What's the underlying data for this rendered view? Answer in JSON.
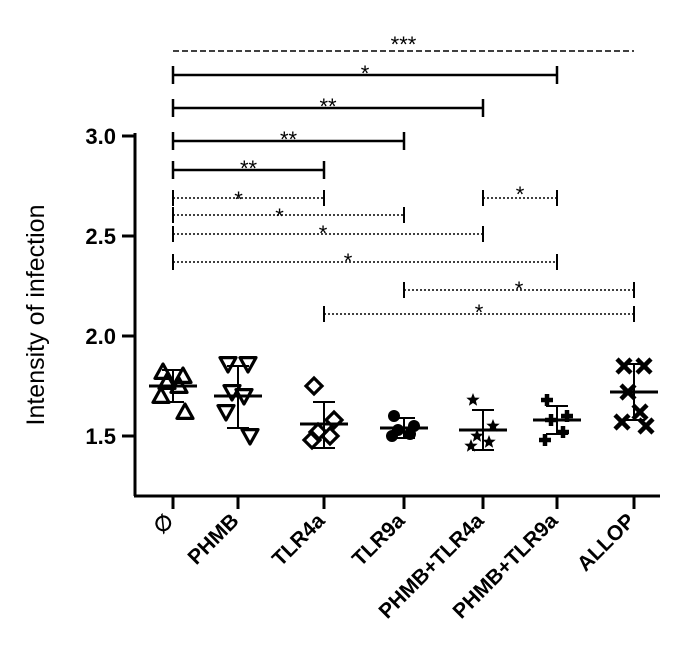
{
  "chart_data": {
    "type": "scatter",
    "ylabel": "Intensity of infection",
    "ylim": [
      1.2,
      3.0
    ],
    "yticks": [
      1.5,
      2.0,
      2.5,
      3.0
    ],
    "ytick_labels": [
      "1.5",
      "2.0",
      "2.5",
      "3.0"
    ],
    "categories": [
      "∅",
      "PHMB",
      "TLR4a",
      "TLR9a",
      "PHMB+TLR4a",
      "PHMB+TLR9a",
      "ALLOP"
    ],
    "groups": [
      {
        "name": "∅",
        "marker": "triangle-up",
        "points": [
          1.82,
          1.8,
          1.77,
          1.75,
          1.7,
          1.62
        ],
        "mean": 1.75,
        "sd": [
          1.67,
          1.83
        ]
      },
      {
        "name": "PHMB",
        "marker": "triangle-down",
        "points": [
          1.86,
          1.86,
          1.72,
          1.7,
          1.62,
          1.5
        ],
        "mean": 1.7,
        "sd": [
          1.54,
          1.85
        ]
      },
      {
        "name": "TLR4a",
        "marker": "diamond",
        "points": [
          1.75,
          1.58,
          1.52,
          1.5,
          1.48
        ],
        "mean": 1.56,
        "sd": [
          1.44,
          1.67
        ]
      },
      {
        "name": "TLR9a",
        "marker": "circle",
        "points": [
          1.6,
          1.55,
          1.53,
          1.51,
          1.5
        ],
        "mean": 1.54,
        "sd": [
          1.49,
          1.59
        ]
      },
      {
        "name": "PHMB+TLR4a",
        "marker": "star",
        "points": [
          1.68,
          1.55,
          1.5,
          1.47,
          1.45
        ],
        "mean": 1.53,
        "sd": [
          1.43,
          1.63
        ]
      },
      {
        "name": "PHMB+TLR9a",
        "marker": "plus",
        "points": [
          1.68,
          1.6,
          1.58,
          1.52,
          1.48
        ],
        "mean": 1.58,
        "sd": [
          1.51,
          1.65
        ]
      },
      {
        "name": "ALLOP",
        "marker": "x",
        "points": [
          1.85,
          1.85,
          1.72,
          1.62,
          1.57,
          1.55
        ],
        "mean": 1.72,
        "sd": [
          1.58,
          1.86
        ]
      }
    ],
    "comparisons": [
      {
        "from": 0,
        "to": 6,
        "label": "***",
        "style": "dashed"
      },
      {
        "from": 0,
        "to": 5,
        "label": "*",
        "style": "solid"
      },
      {
        "from": 0,
        "to": 4,
        "label": "**",
        "style": "solid"
      },
      {
        "from": 0,
        "to": 3,
        "label": "**",
        "style": "solid"
      },
      {
        "from": 0,
        "to": 2,
        "label": "**",
        "style": "solid"
      },
      {
        "from": 0,
        "to": 2,
        "label": "*",
        "style": "dotted"
      },
      {
        "from": 4,
        "to": 5,
        "label": "*",
        "style": "dotted"
      },
      {
        "from": 0,
        "to": 3,
        "label": "*",
        "style": "dotted"
      },
      {
        "from": 0,
        "to": 4,
        "label": "*",
        "style": "dotted"
      },
      {
        "from": 0,
        "to": 5,
        "label": "*",
        "style": "dotted"
      },
      {
        "from": 3,
        "to": 6,
        "label": "*",
        "style": "dotted"
      },
      {
        "from": 2,
        "to": 6,
        "label": "*",
        "style": "dotted"
      }
    ]
  }
}
